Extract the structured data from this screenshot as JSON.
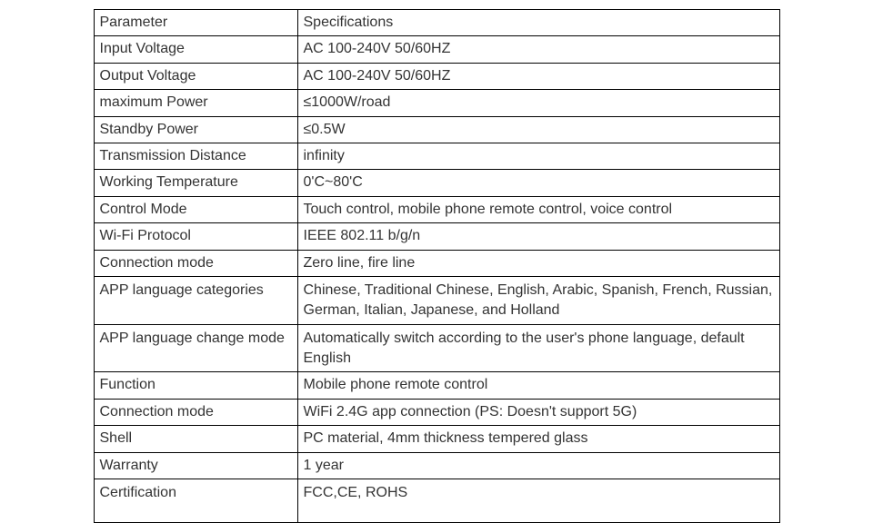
{
  "table": {
    "columns": {
      "param_width": 224,
      "spec_width": 530
    },
    "header": {
      "param": "Parameter",
      "spec": "Specifications"
    },
    "rows": [
      {
        "param": "Input Voltage",
        "spec": "AC 100-240V 50/60HZ",
        "tall": false
      },
      {
        "param": "Output Voltage",
        "spec": "AC 100-240V 50/60HZ",
        "tall": false
      },
      {
        "param": "maximum Power",
        "spec": "≤1000W/road",
        "tall": false
      },
      {
        "param": "Standby Power",
        "spec": "≤0.5W",
        "tall": false
      },
      {
        "param": "Transmission Distance",
        "spec": "infinity",
        "tall": false
      },
      {
        "param": "Working Temperature",
        "spec": "0'C~80'C",
        "tall": false
      },
      {
        "param": "Control Mode",
        "spec": "Touch control, mobile phone remote control, voice control",
        "tall": false
      },
      {
        "param": "Wi-Fi Protocol",
        "spec": "IEEE 802.11 b/g/n",
        "tall": false
      },
      {
        "param": "Connection mode",
        "spec": "Zero line, fire line",
        "tall": false
      },
      {
        "param": "APP language categories",
        "spec": "Chinese, Traditional Chinese, English, Arabic, Spanish, French,\nRussian, German, Italian, Japanese, and Holland",
        "tall": true
      },
      {
        "param": "APP language change mode",
        "spec": "Automatically switch according to the user's phone language, default English",
        "tall": true
      },
      {
        "param": "Function",
        "spec": "Mobile phone remote control",
        "tall": false
      },
      {
        "param": "Connection mode",
        "spec": "WiFi 2.4G app connection (PS: Doesn't support 5G)",
        "tall": false
      },
      {
        "param": "Shell",
        "spec": "PC material, 4mm thickness tempered glass",
        "tall": false
      },
      {
        "param": "Warranty",
        "spec": "1 year",
        "tall": false
      },
      {
        "param": "Certification",
        "spec": "FCC,CE, ROHS",
        "tall": true
      }
    ],
    "styling": {
      "border_color": "#000000",
      "background_color": "#ffffff",
      "text_color": "#333333",
      "font_size": 16,
      "font_family": "Arial, Helvetica, sans-serif"
    }
  }
}
